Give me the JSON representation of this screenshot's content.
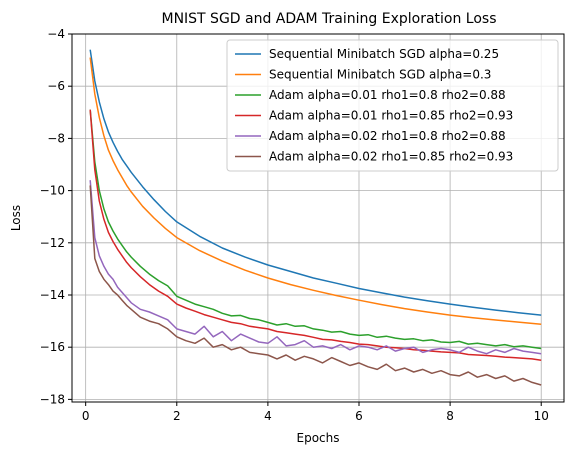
{
  "chart_data": {
    "type": "line",
    "title": "MNIST SGD and ADAM Training Exploration Loss",
    "xlabel": "Epochs",
    "ylabel": "Loss",
    "xlim": [
      -0.3,
      10.5
    ],
    "ylim": [
      -18.1,
      -4.0
    ],
    "xticks": [
      0,
      2,
      4,
      6,
      8,
      10
    ],
    "yticks": [
      -4,
      -6,
      -8,
      -10,
      -12,
      -14,
      -16,
      -18
    ],
    "grid": true,
    "legend_position": "top-right",
    "series": [
      {
        "name": "Sequential Minibatch SGD alpha=0.25",
        "color": "#1f77b4",
        "x": [
          0.1,
          0.2,
          0.3,
          0.4,
          0.5,
          0.6,
          0.7,
          0.8,
          0.9,
          1.0,
          1.25,
          1.5,
          1.75,
          2.0,
          2.5,
          3.0,
          3.5,
          4.0,
          4.5,
          5.0,
          5.5,
          6.0,
          6.5,
          7.0,
          7.5,
          8.0,
          8.5,
          9.0,
          9.5,
          10.0
        ],
        "y": [
          -4.6,
          -5.8,
          -6.6,
          -7.25,
          -7.75,
          -8.15,
          -8.5,
          -8.8,
          -9.05,
          -9.3,
          -9.85,
          -10.35,
          -10.8,
          -11.2,
          -11.75,
          -12.2,
          -12.55,
          -12.85,
          -13.1,
          -13.35,
          -13.55,
          -13.75,
          -13.92,
          -14.08,
          -14.22,
          -14.35,
          -14.47,
          -14.58,
          -14.68,
          -14.77
        ]
      },
      {
        "name": "Sequential Minibatch SGD alpha=0.3",
        "color": "#ff7f0e",
        "x": [
          0.1,
          0.2,
          0.3,
          0.4,
          0.5,
          0.6,
          0.7,
          0.8,
          0.9,
          1.0,
          1.25,
          1.5,
          1.75,
          2.0,
          2.5,
          3.0,
          3.5,
          4.0,
          4.5,
          5.0,
          5.5,
          6.0,
          6.5,
          7.0,
          7.5,
          8.0,
          8.5,
          9.0,
          9.5,
          10.0
        ],
        "y": [
          -4.9,
          -6.3,
          -7.2,
          -7.9,
          -8.45,
          -8.85,
          -9.2,
          -9.5,
          -9.8,
          -10.05,
          -10.6,
          -11.05,
          -11.45,
          -11.8,
          -12.3,
          -12.7,
          -13.05,
          -13.35,
          -13.6,
          -13.82,
          -14.02,
          -14.2,
          -14.37,
          -14.52,
          -14.65,
          -14.77,
          -14.87,
          -14.96,
          -15.04,
          -15.12
        ]
      },
      {
        "name": "Adam alpha=0.01 rho1=0.8 rho2=0.88",
        "color": "#2ca02c",
        "x": [
          0.1,
          0.2,
          0.3,
          0.4,
          0.5,
          0.6,
          0.7,
          0.8,
          0.9,
          1.0,
          1.2,
          1.4,
          1.6,
          1.8,
          2.0,
          2.2,
          2.4,
          2.6,
          2.8,
          3.0,
          3.2,
          3.4,
          3.6,
          3.8,
          4.0,
          4.2,
          4.4,
          4.6,
          4.8,
          5.0,
          5.2,
          5.4,
          5.6,
          5.8,
          6.0,
          6.2,
          6.4,
          6.6,
          6.8,
          7.0,
          7.2,
          7.4,
          7.6,
          7.8,
          8.0,
          8.2,
          8.4,
          8.6,
          8.8,
          9.0,
          9.2,
          9.4,
          9.6,
          9.8,
          10.0
        ],
        "y": [
          -6.9,
          -8.9,
          -10.0,
          -10.7,
          -11.2,
          -11.55,
          -11.85,
          -12.1,
          -12.35,
          -12.55,
          -12.9,
          -13.2,
          -13.45,
          -13.65,
          -14.05,
          -14.2,
          -14.35,
          -14.45,
          -14.55,
          -14.7,
          -14.8,
          -14.78,
          -14.9,
          -14.95,
          -15.05,
          -15.15,
          -15.1,
          -15.2,
          -15.18,
          -15.3,
          -15.35,
          -15.42,
          -15.4,
          -15.5,
          -15.55,
          -15.52,
          -15.62,
          -15.58,
          -15.65,
          -15.7,
          -15.68,
          -15.75,
          -15.72,
          -15.8,
          -15.82,
          -15.78,
          -15.88,
          -15.85,
          -15.9,
          -15.95,
          -15.9,
          -15.98,
          -15.95,
          -16.0,
          -16.05
        ]
      },
      {
        "name": "Adam alpha=0.01 rho1=0.85 rho2=0.93",
        "color": "#d62728",
        "x": [
          0.1,
          0.2,
          0.3,
          0.4,
          0.5,
          0.6,
          0.7,
          0.8,
          0.9,
          1.0,
          1.2,
          1.4,
          1.6,
          1.8,
          2.0,
          2.2,
          2.4,
          2.6,
          2.8,
          3.0,
          3.2,
          3.4,
          3.6,
          3.8,
          4.0,
          4.2,
          4.4,
          4.6,
          4.8,
          5.0,
          5.2,
          5.4,
          5.6,
          5.8,
          6.0,
          6.2,
          6.4,
          6.6,
          6.8,
          7.0,
          7.2,
          7.4,
          7.6,
          7.8,
          8.0,
          8.2,
          8.4,
          8.6,
          8.8,
          9.0,
          9.2,
          9.4,
          9.6,
          9.8,
          10.0
        ],
        "y": [
          -6.9,
          -9.2,
          -10.4,
          -11.1,
          -11.6,
          -11.95,
          -12.25,
          -12.5,
          -12.75,
          -12.95,
          -13.3,
          -13.6,
          -13.85,
          -14.05,
          -14.35,
          -14.5,
          -14.62,
          -14.75,
          -14.85,
          -14.95,
          -15.05,
          -15.1,
          -15.2,
          -15.25,
          -15.3,
          -15.4,
          -15.45,
          -15.5,
          -15.55,
          -15.62,
          -15.7,
          -15.72,
          -15.78,
          -15.82,
          -15.88,
          -15.9,
          -15.95,
          -16.0,
          -16.02,
          -16.05,
          -16.1,
          -16.12,
          -16.15,
          -16.18,
          -16.2,
          -16.22,
          -16.28,
          -16.3,
          -16.32,
          -16.35,
          -16.38,
          -16.4,
          -16.42,
          -16.45,
          -16.5
        ]
      },
      {
        "name": "Adam alpha=0.02 rho1=0.8 rho2=0.88",
        "color": "#9467bd",
        "x": [
          0.1,
          0.2,
          0.3,
          0.4,
          0.5,
          0.6,
          0.7,
          0.8,
          0.9,
          1.0,
          1.2,
          1.4,
          1.6,
          1.8,
          2.0,
          2.2,
          2.4,
          2.6,
          2.8,
          3.0,
          3.2,
          3.4,
          3.6,
          3.8,
          4.0,
          4.2,
          4.4,
          4.6,
          4.8,
          5.0,
          5.2,
          5.4,
          5.6,
          5.8,
          6.0,
          6.2,
          6.4,
          6.6,
          6.8,
          7.0,
          7.2,
          7.4,
          7.6,
          7.8,
          8.0,
          8.2,
          8.4,
          8.6,
          8.8,
          9.0,
          9.2,
          9.4,
          9.6,
          9.8,
          10.0
        ],
        "y": [
          -9.6,
          -11.8,
          -12.5,
          -12.9,
          -13.2,
          -13.4,
          -13.7,
          -13.9,
          -14.1,
          -14.3,
          -14.55,
          -14.65,
          -14.8,
          -14.95,
          -15.3,
          -15.4,
          -15.5,
          -15.2,
          -15.6,
          -15.4,
          -15.75,
          -15.5,
          -15.65,
          -15.8,
          -15.85,
          -15.6,
          -15.95,
          -15.9,
          -15.75,
          -16.0,
          -15.95,
          -16.05,
          -15.9,
          -16.1,
          -15.95,
          -16.0,
          -16.1,
          -15.95,
          -16.15,
          -16.05,
          -16.0,
          -16.2,
          -16.1,
          -16.05,
          -16.1,
          -16.2,
          -16.0,
          -16.15,
          -16.25,
          -16.1,
          -16.2,
          -16.05,
          -16.15,
          -16.2,
          -16.25
        ]
      },
      {
        "name": "Adam alpha=0.02 rho1=0.85 rho2=0.93",
        "color": "#8c564b",
        "x": [
          0.1,
          0.2,
          0.3,
          0.4,
          0.5,
          0.6,
          0.7,
          0.8,
          0.9,
          1.0,
          1.2,
          1.4,
          1.6,
          1.8,
          2.0,
          2.2,
          2.4,
          2.6,
          2.8,
          3.0,
          3.2,
          3.4,
          3.6,
          3.8,
          4.0,
          4.2,
          4.4,
          4.6,
          4.8,
          5.0,
          5.2,
          5.4,
          5.6,
          5.8,
          6.0,
          6.2,
          6.4,
          6.6,
          6.8,
          7.0,
          7.2,
          7.4,
          7.6,
          7.8,
          8.0,
          8.2,
          8.4,
          8.6,
          8.8,
          9.0,
          9.2,
          9.4,
          9.6,
          9.8,
          10.0
        ],
        "y": [
          -9.8,
          -12.6,
          -13.1,
          -13.4,
          -13.6,
          -13.85,
          -14.0,
          -14.2,
          -14.4,
          -14.55,
          -14.85,
          -15.0,
          -15.1,
          -15.3,
          -15.6,
          -15.75,
          -15.85,
          -15.65,
          -16.0,
          -15.9,
          -16.1,
          -16.0,
          -16.2,
          -16.25,
          -16.3,
          -16.45,
          -16.3,
          -16.5,
          -16.35,
          -16.45,
          -16.6,
          -16.4,
          -16.55,
          -16.7,
          -16.6,
          -16.75,
          -16.85,
          -16.65,
          -16.9,
          -16.8,
          -16.95,
          -16.85,
          -17.0,
          -16.9,
          -17.05,
          -17.1,
          -16.95,
          -17.15,
          -17.05,
          -17.2,
          -17.1,
          -17.3,
          -17.2,
          -17.35,
          -17.45
        ]
      }
    ]
  }
}
